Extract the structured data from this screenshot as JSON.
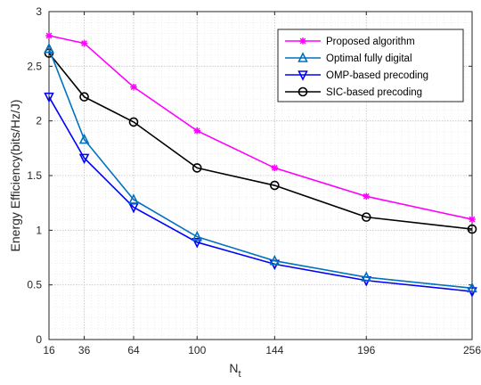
{
  "chart_data": {
    "type": "line",
    "xlabel": "N",
    "xlabel_sub": "t",
    "ylabel": "Energy Efficiency(bits/Hz/J)",
    "x": [
      16,
      36,
      64,
      100,
      144,
      196,
      256
    ],
    "xticks": [
      "16",
      "36",
      "64",
      "100",
      "144",
      "196",
      "256"
    ],
    "xlim": [
      16,
      256
    ],
    "ylim": [
      0,
      3
    ],
    "yticks": [
      "0",
      "0.5",
      "1",
      "1.5",
      "2",
      "2.5",
      "3"
    ],
    "grid": true,
    "legend_position": "top-right",
    "series": [
      {
        "name": "Proposed algorithm",
        "color": "#ff00ff",
        "marker": "asterisk",
        "values": [
          2.78,
          2.71,
          2.31,
          1.91,
          1.57,
          1.31,
          1.1
        ]
      },
      {
        "name": "Optimal fully digital",
        "color": "#0072bd",
        "marker": "triangle-up",
        "values": [
          2.66,
          1.83,
          1.28,
          0.94,
          0.72,
          0.57,
          0.47
        ]
      },
      {
        "name": "OMP-based precoding",
        "color": "#0000ff",
        "marker": "triangle-down",
        "values": [
          2.22,
          1.66,
          1.21,
          0.89,
          0.69,
          0.54,
          0.44
        ]
      },
      {
        "name": "SIC-based precoding",
        "color": "#000000",
        "marker": "circle",
        "values": [
          2.62,
          2.22,
          1.99,
          1.57,
          1.41,
          1.12,
          1.01
        ]
      }
    ]
  }
}
